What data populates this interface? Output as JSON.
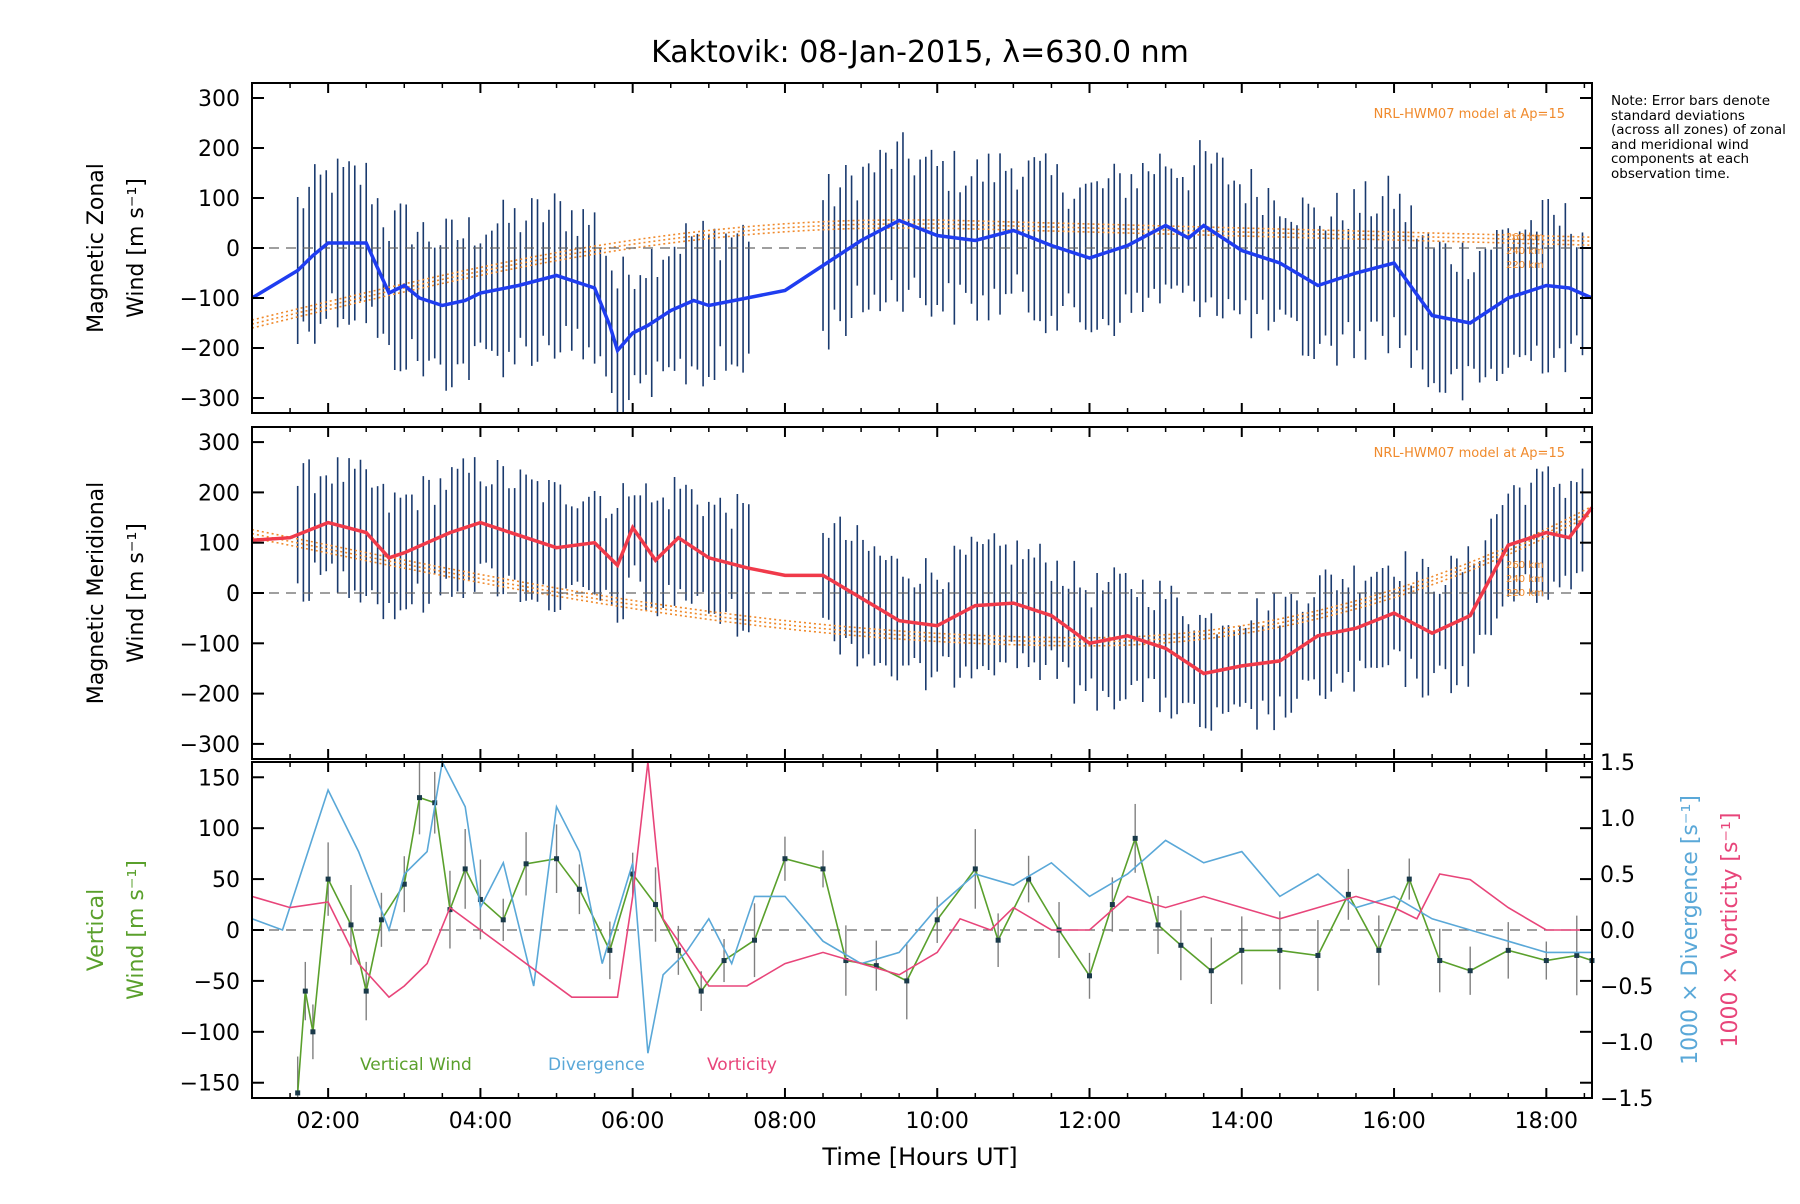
{
  "title": "Kaktovik: 08-Jan-2015, λ=630.0 nm",
  "note": "Note: Error bars denote standard deviations (across all zones) of zonal and meridional wind components at each observation time.",
  "xlabel": "Time [Hours UT]",
  "x_ticks": [
    "02:00",
    "04:00",
    "06:00",
    "08:00",
    "10:00",
    "12:00",
    "14:00",
    "16:00",
    "18:00"
  ],
  "colors": {
    "zonal": "#1f3df0",
    "meridional": "#f03a4a",
    "vertical": "#5aa02c",
    "divergence": "#5aa8d8",
    "vorticity": "#e8457a",
    "model": "#f08a2c",
    "errorbar": "#1a3a6e"
  },
  "panels": {
    "zonal": {
      "ylabel_line1": "Magnetic Zonal",
      "ylabel_line2": "Wind [m s⁻¹]",
      "model_label": "NRL-HWM07 model at Ap=15",
      "model_altitudes": [
        "260 km",
        "240 km",
        "220 km"
      ],
      "yticks": [
        "300",
        "200",
        "100",
        "0",
        "−100",
        "−200",
        "−300"
      ]
    },
    "meridional": {
      "ylabel_line1": "Magnetic Meridional",
      "ylabel_line2": "Wind [m s⁻¹]",
      "model_label": "NRL-HWM07 model at Ap=15",
      "model_altitudes": [
        "260 km",
        "240 km",
        "220 km"
      ],
      "yticks": [
        "300",
        "200",
        "100",
        "0",
        "−100",
        "−200",
        "−300"
      ]
    },
    "vertical": {
      "ylabel_line1": "Vertical",
      "ylabel_line2": "Wind [m s⁻¹]",
      "right_label_div": "1000 × Divergence [s⁻¹]",
      "right_label_vort": "1000 × Vorticity [s⁻¹]",
      "legend": [
        "Vertical Wind",
        "Divergence",
        "Vorticity"
      ],
      "yticks": [
        "150",
        "100",
        "50",
        "0",
        "−50",
        "−100",
        "−150"
      ],
      "yticks_right": [
        "1.5",
        "1.0",
        "0.5",
        "0.0",
        "−0.5",
        "−1.0",
        "−1.5"
      ]
    }
  },
  "chart_data": [
    {
      "type": "line",
      "title": "Kaktovik: 08-Jan-2015, λ=630.0 nm",
      "xlabel": "",
      "ylabel": "Magnetic Zonal Wind [m s⁻¹]",
      "xlim": [
        1.0,
        18.6
      ],
      "ylim": [
        -330,
        330
      ],
      "x": [
        1.0,
        1.6,
        1.8,
        2.0,
        2.5,
        2.8,
        3.0,
        3.2,
        3.5,
        3.8,
        4.0,
        4.5,
        5.0,
        5.5,
        5.7,
        5.8,
        6.0,
        6.2,
        6.5,
        6.8,
        7.0,
        7.5,
        8.0,
        8.5,
        9.0,
        9.5,
        10.0,
        10.5,
        11.0,
        11.5,
        12.0,
        12.5,
        13.0,
        13.3,
        13.5,
        14.0,
        14.5,
        15.0,
        15.5,
        16.0,
        16.5,
        17.0,
        17.5,
        18.0,
        18.3,
        18.6
      ],
      "series": [
        {
          "name": "",
          "values": [
            -100,
            -45,
            -15,
            10,
            10,
            -90,
            -75,
            -100,
            -115,
            -105,
            -90,
            -75,
            -55,
            -80,
            -155,
            -205,
            -170,
            -155,
            -125,
            -105,
            -115,
            -100,
            -85,
            -35,
            15,
            55,
            25,
            15,
            35,
            5,
            -20,
            5,
            45,
            20,
            45,
            -5,
            -30,
            -75,
            -50,
            -30,
            -135,
            -150,
            -100,
            -75,
            -80,
            -100
          ]
        }
      ],
      "model": {
        "name": "NRL-HWM07 model at Ap=15",
        "altitudes": [
          "260 km",
          "240 km",
          "220 km"
        ]
      }
    },
    {
      "type": "line",
      "xlabel": "",
      "ylabel": "Magnetic Meridional Wind [m s⁻¹]",
      "xlim": [
        1.0,
        18.6
      ],
      "ylim": [
        -330,
        330
      ],
      "x": [
        1.0,
        1.5,
        2.0,
        2.5,
        2.8,
        3.0,
        3.3,
        3.6,
        4.0,
        4.5,
        5.0,
        5.5,
        5.8,
        6.0,
        6.3,
        6.6,
        7.0,
        7.5,
        8.0,
        8.5,
        9.0,
        9.5,
        10.0,
        10.5,
        11.0,
        11.5,
        12.0,
        12.5,
        13.0,
        13.5,
        14.0,
        14.5,
        15.0,
        15.5,
        16.0,
        16.5,
        17.0,
        17.5,
        18.0,
        18.3,
        18.6
      ],
      "series": [
        {
          "name": "",
          "values": [
            105,
            110,
            140,
            120,
            70,
            80,
            100,
            120,
            140,
            115,
            90,
            100,
            55,
            130,
            65,
            110,
            70,
            50,
            35,
            35,
            -10,
            -55,
            -65,
            -25,
            -20,
            -45,
            -100,
            -85,
            -110,
            -160,
            -145,
            -135,
            -85,
            -70,
            -40,
            -80,
            -45,
            95,
            120,
            110,
            170
          ]
        }
      ],
      "model": {
        "name": "NRL-HWM07 model at Ap=15",
        "altitudes": [
          "260 km",
          "240 km",
          "220 km"
        ]
      }
    },
    {
      "type": "line",
      "xlabel": "Time [Hours UT]",
      "ylabel": "Vertical Wind [m s⁻¹]",
      "xlim": [
        1.0,
        18.6
      ],
      "ylim": [
        -165,
        165
      ],
      "y2label": "1000 × Divergence [s⁻¹] / 1000 × Vorticity [s⁻¹]",
      "y2lim": [
        -1.5,
        1.5
      ],
      "legend": [
        "Vertical Wind",
        "Divergence",
        "Vorticity"
      ],
      "series": [
        {
          "name": "Vertical Wind",
          "axis": "left",
          "x": [
            1.6,
            1.7,
            1.8,
            2.0,
            2.3,
            2.5,
            2.7,
            3.0,
            3.2,
            3.4,
            3.6,
            3.8,
            4.0,
            4.3,
            4.6,
            5.0,
            5.3,
            5.7,
            6.0,
            6.3,
            6.6,
            6.9,
            7.2,
            7.6,
            8.0,
            8.5,
            8.8,
            9.2,
            9.6,
            10.0,
            10.5,
            10.8,
            11.2,
            11.6,
            12.0,
            12.3,
            12.6,
            12.9,
            13.2,
            13.6,
            14.0,
            14.5,
            15.0,
            15.4,
            15.8,
            16.2,
            16.6,
            17.0,
            17.5,
            18.0,
            18.4,
            18.6
          ],
          "values": [
            -160,
            -60,
            -100,
            50,
            5,
            -60,
            10,
            45,
            130,
            125,
            20,
            60,
            30,
            10,
            65,
            70,
            40,
            -20,
            55,
            25,
            -20,
            -60,
            -30,
            -10,
            70,
            60,
            -30,
            -35,
            -50,
            10,
            60,
            -10,
            50,
            0,
            -45,
            25,
            90,
            5,
            -15,
            -40,
            -20,
            -20,
            -25,
            35,
            -20,
            50,
            -30,
            -40,
            -20,
            -30,
            -25,
            -30
          ]
        },
        {
          "name": "Divergence",
          "axis": "right",
          "x": [
            1.0,
            1.4,
            2.0,
            2.4,
            2.8,
            3.0,
            3.3,
            3.5,
            3.8,
            4.0,
            4.3,
            4.7,
            5.0,
            5.3,
            5.6,
            6.0,
            6.2,
            6.4,
            6.7,
            7.0,
            7.3,
            7.6,
            8.0,
            8.5,
            9.0,
            9.5,
            10.0,
            10.5,
            11.0,
            11.5,
            12.0,
            12.5,
            13.0,
            13.5,
            14.0,
            14.5,
            15.0,
            15.5,
            16.0,
            16.5,
            17.0,
            17.5,
            18.0,
            18.6
          ],
          "values": [
            0.1,
            0.0,
            1.25,
            0.7,
            0.0,
            0.5,
            0.7,
            1.6,
            1.1,
            0.2,
            0.6,
            -0.5,
            1.1,
            0.7,
            -0.3,
            0.6,
            -1.1,
            -0.4,
            -0.2,
            0.1,
            -0.3,
            0.3,
            0.3,
            -0.1,
            -0.3,
            -0.2,
            0.2,
            0.5,
            0.4,
            0.6,
            0.3,
            0.5,
            0.8,
            0.6,
            0.7,
            0.3,
            0.5,
            0.2,
            0.3,
            0.1,
            0.0,
            -0.1,
            -0.2,
            -0.2
          ]
        },
        {
          "name": "Vorticity",
          "axis": "right",
          "x": [
            1.0,
            1.5,
            2.0,
            2.4,
            2.8,
            3.0,
            3.3,
            3.6,
            4.0,
            4.4,
            4.8,
            5.2,
            5.5,
            5.8,
            6.0,
            6.2,
            6.4,
            6.7,
            7.0,
            7.5,
            8.0,
            8.5,
            9.0,
            9.5,
            10.0,
            10.3,
            10.7,
            11.0,
            11.5,
            12.0,
            12.5,
            13.0,
            13.5,
            14.0,
            14.5,
            15.0,
            15.5,
            16.0,
            16.3,
            16.6,
            17.0,
            17.5,
            18.0,
            18.6
          ],
          "values": [
            0.3,
            0.2,
            0.25,
            -0.3,
            -0.6,
            -0.5,
            -0.3,
            0.2,
            0.0,
            -0.2,
            -0.4,
            -0.6,
            -0.6,
            -0.6,
            0.3,
            1.55,
            0.1,
            -0.2,
            -0.5,
            -0.5,
            -0.3,
            -0.2,
            -0.3,
            -0.4,
            -0.2,
            0.1,
            0.0,
            0.2,
            0.0,
            0.0,
            0.3,
            0.2,
            0.3,
            0.2,
            0.1,
            0.2,
            0.3,
            0.2,
            0.1,
            0.5,
            0.45,
            0.2,
            0.0,
            0.0
          ]
        }
      ]
    }
  ]
}
